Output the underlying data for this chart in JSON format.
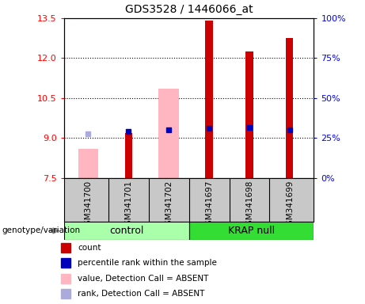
{
  "title": "GDS3528 / 1446066_at",
  "samples": [
    "GSM341700",
    "GSM341701",
    "GSM341702",
    "GSM341697",
    "GSM341698",
    "GSM341699"
  ],
  "ylim_left": [
    7.5,
    13.5
  ],
  "yticks_left": [
    7.5,
    9.0,
    10.5,
    12.0,
    13.5
  ],
  "ylim_right": [
    0,
    100
  ],
  "yticks_right": [
    0,
    25,
    50,
    75,
    100
  ],
  "bar_bottom": 7.5,
  "red_bars": {
    "GSM341700": null,
    "GSM341701": 9.2,
    "GSM341702": null,
    "GSM341697": 13.4,
    "GSM341698": 12.25,
    "GSM341699": 12.75
  },
  "pink_bars": {
    "GSM341700": 8.6,
    "GSM341701": null,
    "GSM341702": 10.85,
    "GSM341697": null,
    "GSM341698": null,
    "GSM341699": null
  },
  "blue_markers": {
    "GSM341700": null,
    "GSM341701": 9.25,
    "GSM341702": 9.3,
    "GSM341697": 9.35,
    "GSM341698": 9.4,
    "GSM341699": 9.3
  },
  "light_blue_markers": {
    "GSM341700": 9.15,
    "GSM341701": null,
    "GSM341702": null,
    "GSM341697": null,
    "GSM341698": null,
    "GSM341699": null
  },
  "red_bar_width": 0.18,
  "pink_bar_width": 0.5,
  "red_color": "#CC0000",
  "pink_color": "#FFB6C1",
  "blue_color": "#0000BB",
  "light_blue_color": "#AAAADD",
  "control_color": "#AAFFAA",
  "krap_color": "#33DD33",
  "label_area_color": "#C8C8C8",
  "group_label": "genotype/variation",
  "legend_items": [
    {
      "label": "count",
      "color": "#CC0000"
    },
    {
      "label": "percentile rank within the sample",
      "color": "#0000BB"
    },
    {
      "label": "value, Detection Call = ABSENT",
      "color": "#FFB6C1"
    },
    {
      "label": "rank, Detection Call = ABSENT",
      "color": "#AAAADD"
    }
  ],
  "dotted_lines": [
    9.0,
    10.5,
    12.0
  ]
}
